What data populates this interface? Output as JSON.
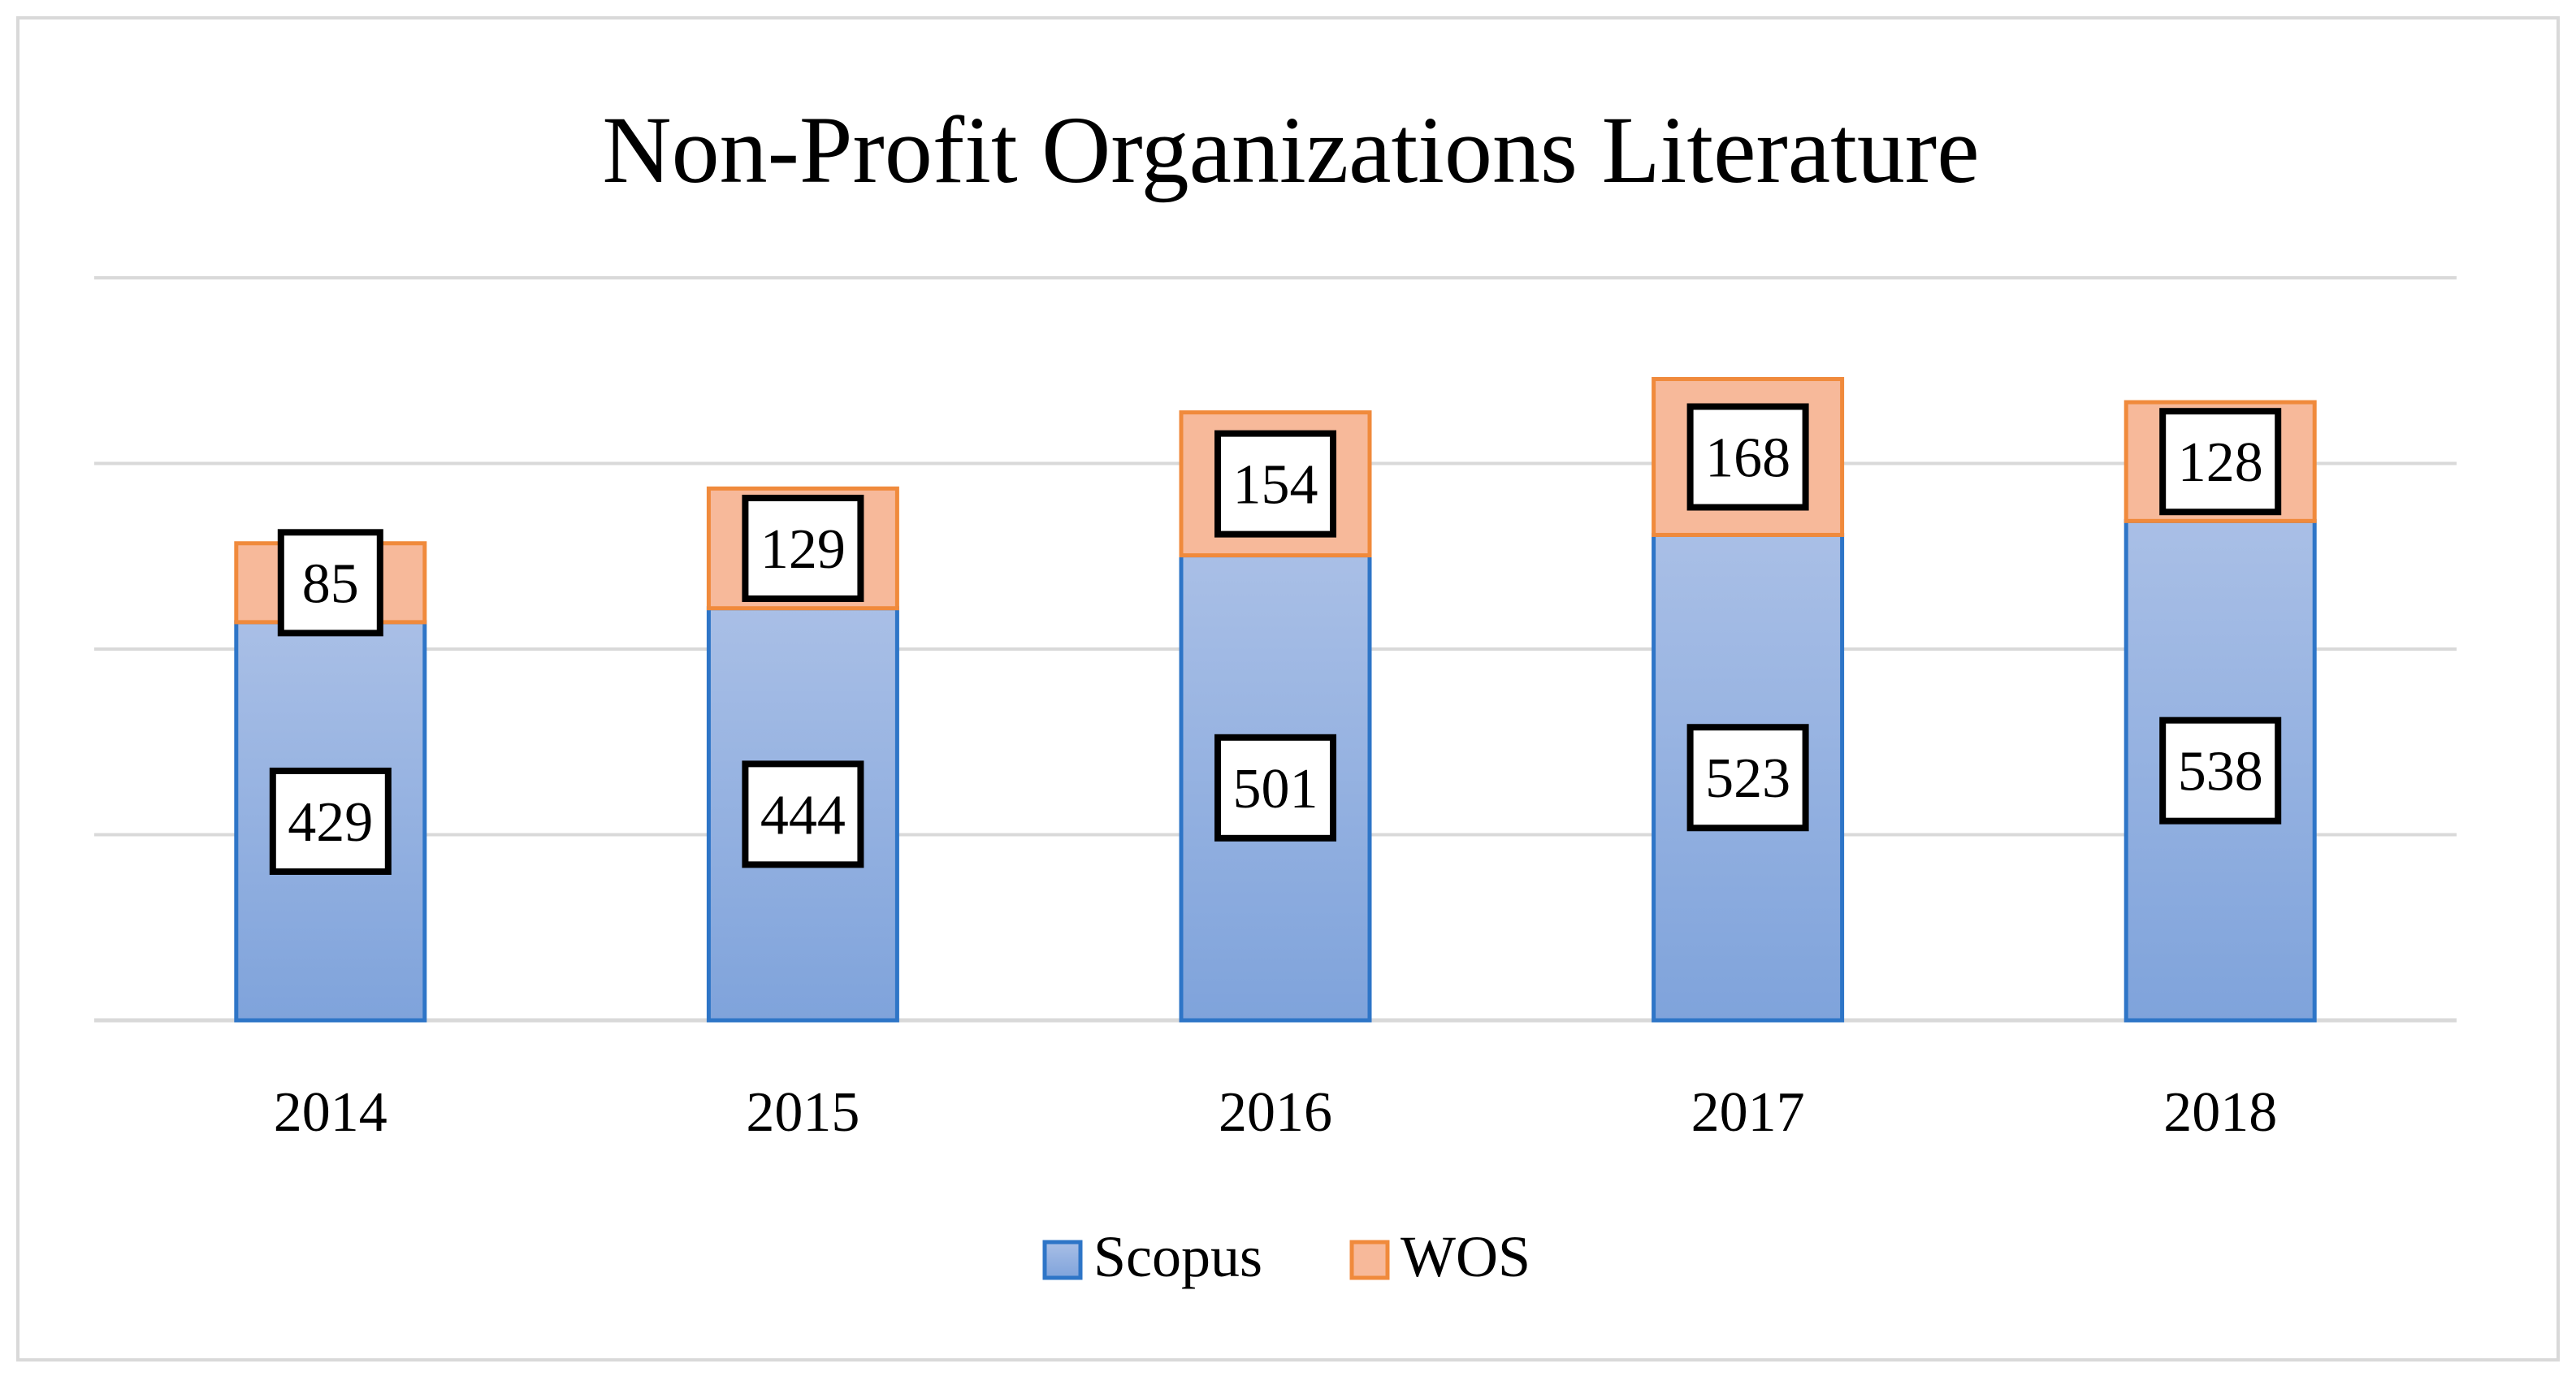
{
  "chart_data": {
    "type": "bar",
    "stacked": true,
    "title": "Non-Profit Organizations Literature",
    "xlabel": "",
    "ylabel": "",
    "categories": [
      "2014",
      "2015",
      "2016",
      "2017",
      "2018"
    ],
    "series": [
      {
        "name": "Scopus",
        "values": [
          429,
          444,
          501,
          523,
          538
        ],
        "color": "#7fa3db",
        "color_top": "#a9bfe6",
        "edge": "#2e75c7"
      },
      {
        "name": "WOS",
        "values": [
          85,
          129,
          154,
          168,
          128
        ],
        "color": "#f7b99a",
        "edge": "#f08a3c"
      }
    ],
    "ylim": [
      0,
      800
    ],
    "grid": true,
    "data_labels": true,
    "legend": "bottom"
  }
}
